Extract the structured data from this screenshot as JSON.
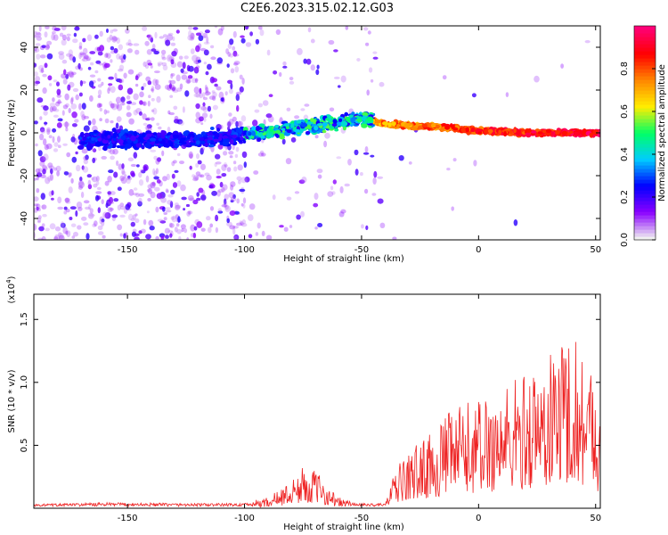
{
  "title": "C2E6.2023.315.02.12.G03",
  "chart_data": [
    {
      "type": "heatmap",
      "xlabel": "Height of straight line (km)",
      "ylabel": "Frequency (Hz)",
      "xlim": [
        -190,
        52
      ],
      "ylim": [
        -50,
        50
      ],
      "xticks": [
        -150,
        -100,
        -50,
        0,
        50
      ],
      "yticks": [
        -40,
        -20,
        0,
        20,
        40
      ],
      "colorbar": {
        "label": "Normalized spectral amplitude",
        "range": [
          0,
          1
        ],
        "ticks": [
          "0.0",
          "0.2",
          "0.4",
          "0.6",
          "0.8"
        ],
        "colors": [
          "#f0f0f0",
          "#8a00ff",
          "#0000ff",
          "#00ccff",
          "#00ff66",
          "#ffee00",
          "#ff8800",
          "#ff0000",
          "#ff0077"
        ]
      },
      "ridge": {
        "description_points_x": [
          -165,
          -120,
          -100,
          -80,
          -60,
          -50,
          -40,
          -20,
          0,
          20,
          52
        ],
        "description_points_y": [
          -3,
          -3,
          -1,
          2,
          5,
          7,
          4,
          3,
          1,
          0,
          0
        ]
      }
    },
    {
      "type": "line",
      "xlabel": "Height of straight line (km)",
      "ylabel": "SNR (10 * v/v)",
      "scale_label": "(x10",
      "scale_exp": "4",
      "xlim": [
        -190,
        52
      ],
      "ylim": [
        0,
        1.7
      ],
      "xticks": [
        -150,
        -100,
        -50,
        0,
        50
      ],
      "yticks": [
        0.5,
        1.0,
        1.5
      ],
      "ytick_labels": [
        "0.5",
        "1.0",
        "1.5"
      ],
      "color": "#ee2222",
      "envelope_x": [
        -190,
        -160,
        -120,
        -100,
        -90,
        -80,
        -75,
        -70,
        -65,
        -60,
        -50,
        -40,
        -35,
        -25,
        -20,
        -10,
        0,
        10,
        20,
        30,
        35,
        40,
        45,
        50,
        52
      ],
      "envelope_y": [
        0.03,
        0.05,
        0.04,
        0.04,
        0.08,
        0.2,
        0.3,
        0.28,
        0.18,
        0.08,
        0.04,
        0.04,
        0.3,
        0.5,
        0.55,
        0.75,
        0.8,
        0.9,
        1.0,
        1.1,
        1.3,
        1.3,
        1.2,
        1.0,
        0.8
      ]
    }
  ]
}
